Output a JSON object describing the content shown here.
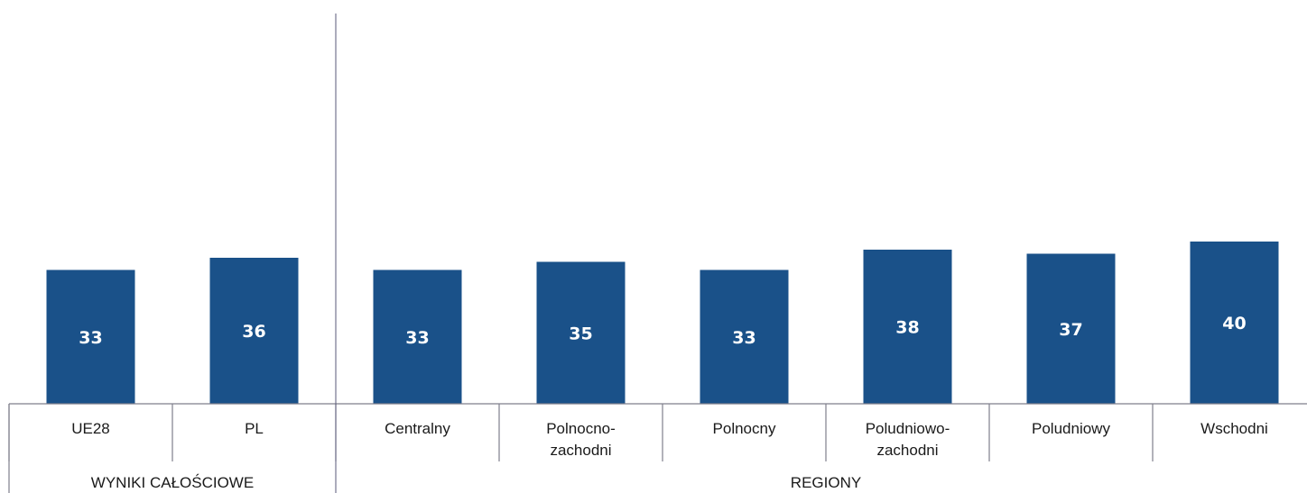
{
  "chart_data": {
    "type": "bar",
    "categories": [
      [
        "UE28"
      ],
      [
        "PL"
      ],
      [
        "Centralny"
      ],
      [
        "Polnocno-",
        "zachodni"
      ],
      [
        "Polnocny"
      ],
      [
        "Poludniowo-",
        "zachodni"
      ],
      [
        "Poludniowy"
      ],
      [
        "Wschodni"
      ]
    ],
    "values": [
      33,
      36,
      33,
      35,
      33,
      38,
      37,
      40
    ],
    "groups": [
      {
        "label": "WYNIKI CAŁOŚCIOWE",
        "count": 2
      },
      {
        "label": "REGIONY",
        "count": 6
      }
    ],
    "ylim": [
      0,
      100
    ],
    "colors": {
      "bar": "#1a5189",
      "value_label": "#ffffff"
    },
    "grid": false,
    "legend": "none"
  }
}
